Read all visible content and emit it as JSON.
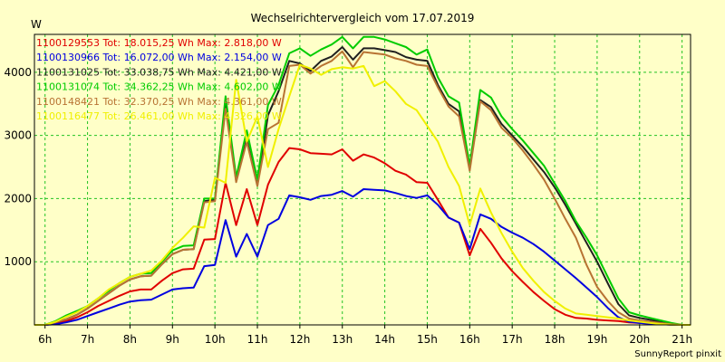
{
  "chart_data": {
    "type": "line",
    "title": "Wechselrichtervergleich vom 17.07.2019",
    "ylabel": "W",
    "xlabel": "",
    "footer": "SunnyReport pinxit",
    "ylim": [
      0,
      4600
    ],
    "xlim": [
      5.75,
      21.2
    ],
    "yticks": [
      1000,
      2000,
      3000,
      4000
    ],
    "xticks": [
      6,
      7,
      8,
      9,
      10,
      11,
      12,
      13,
      14,
      15,
      16,
      17,
      18,
      19,
      20,
      21
    ],
    "xtick_labels": [
      "6h",
      "7h",
      "8h",
      "9h",
      "10h",
      "11h",
      "12h",
      "13h",
      "14h",
      "15h",
      "16h",
      "17h",
      "18h",
      "19h",
      "20h",
      "21h"
    ],
    "grid": true,
    "legend_position": "top-left",
    "x": [
      5.75,
      6.0,
      6.25,
      6.5,
      6.75,
      7.0,
      7.25,
      7.5,
      7.75,
      8.0,
      8.25,
      8.5,
      8.75,
      9.0,
      9.25,
      9.5,
      9.75,
      10.0,
      10.25,
      10.5,
      10.75,
      11.0,
      11.25,
      11.5,
      11.75,
      12.0,
      12.25,
      12.5,
      12.75,
      13.0,
      13.25,
      13.5,
      13.75,
      14.0,
      14.25,
      14.5,
      14.75,
      15.0,
      15.25,
      15.5,
      15.75,
      16.0,
      16.25,
      16.5,
      16.75,
      17.0,
      17.25,
      17.5,
      17.75,
      18.0,
      18.25,
      18.5,
      18.75,
      19.0,
      19.25,
      19.5,
      19.75,
      20.0,
      20.25,
      20.5,
      20.75,
      21.0,
      21.2
    ],
    "series": [
      {
        "name": "1100129553",
        "color": "#e00000",
        "legend": "1100129553 Tot: 18.015,25 Wh Max: 2.818,00 W",
        "values": [
          0,
          0,
          20,
          60,
          120,
          200,
          300,
          380,
          460,
          530,
          560,
          560,
          700,
          820,
          880,
          890,
          1350,
          1360,
          2250,
          1580,
          2150,
          1580,
          2220,
          2580,
          2800,
          2780,
          2720,
          2710,
          2700,
          2780,
          2600,
          2700,
          2650,
          2560,
          2440,
          2380,
          2260,
          2250,
          1980,
          1700,
          1620,
          1100,
          1520,
          1300,
          1050,
          850,
          680,
          520,
          380,
          250,
          160,
          110,
          100,
          80,
          70,
          60,
          40,
          30,
          20,
          10,
          5,
          0,
          0
        ]
      },
      {
        "name": "1100130966",
        "color": "#0000e0",
        "legend": "1100130966 Tot: 16.072,00 Wh Max: 2.154,00 W",
        "values": [
          0,
          0,
          10,
          40,
          80,
          140,
          200,
          260,
          320,
          370,
          390,
          400,
          480,
          560,
          580,
          590,
          930,
          950,
          1660,
          1080,
          1440,
          1080,
          1580,
          1680,
          2050,
          2020,
          1980,
          2040,
          2060,
          2120,
          2030,
          2150,
          2140,
          2130,
          2090,
          2040,
          2010,
          2050,
          1900,
          1700,
          1620,
          1200,
          1750,
          1680,
          1550,
          1460,
          1380,
          1280,
          1160,
          1020,
          880,
          740,
          590,
          440,
          270,
          120,
          50,
          30,
          20,
          10,
          5,
          0,
          0
        ]
      },
      {
        "name": "1100131025",
        "color": "#202020",
        "legend": "1100131025 Tot: 33.038,75 Wh Max: 4.421,00 W",
        "values": [
          0,
          0,
          40,
          90,
          160,
          260,
          380,
          500,
          620,
          720,
          770,
          780,
          960,
          1120,
          1190,
          1200,
          1960,
          1980,
          3550,
          2280,
          2940,
          2210,
          3320,
          3700,
          4180,
          4140,
          4020,
          4180,
          4250,
          4400,
          4200,
          4380,
          4380,
          4350,
          4320,
          4240,
          4200,
          4180,
          3800,
          3500,
          3380,
          2480,
          3560,
          3450,
          3180,
          3000,
          2820,
          2620,
          2420,
          2180,
          1900,
          1600,
          1300,
          1000,
          660,
          330,
          150,
          110,
          80,
          50,
          20,
          0,
          0
        ]
      },
      {
        "name": "1100131074",
        "color": "#00cc00",
        "legend": "1100131074 Tot: 34.362,25 Wh Max: 4.602,00 W",
        "values": [
          0,
          0,
          60,
          150,
          220,
          300,
          420,
          540,
          660,
          760,
          810,
          820,
          1000,
          1180,
          1250,
          1260,
          2000,
          2000,
          3620,
          2340,
          3080,
          2300,
          3480,
          3800,
          4300,
          4380,
          4260,
          4360,
          4440,
          4560,
          4380,
          4560,
          4560,
          4520,
          4460,
          4400,
          4280,
          4360,
          3920,
          3620,
          3520,
          2520,
          3720,
          3600,
          3300,
          3100,
          2920,
          2720,
          2520,
          2240,
          1960,
          1640,
          1380,
          1100,
          760,
          420,
          200,
          150,
          110,
          70,
          30,
          0,
          0
        ]
      },
      {
        "name": "1100148421",
        "color": "#b87333",
        "legend": "1100148421 Tot: 32.370,25 Wh Max: 4.361,00 W",
        "values": [
          0,
          0,
          40,
          90,
          160,
          260,
          380,
          500,
          620,
          720,
          770,
          780,
          960,
          1120,
          1190,
          1200,
          1940,
          1960,
          3420,
          2260,
          2900,
          2200,
          3100,
          3200,
          4100,
          4120,
          3980,
          4100,
          4180,
          4330,
          4080,
          4320,
          4300,
          4280,
          4220,
          4180,
          4120,
          4100,
          3760,
          3460,
          3300,
          2440,
          3540,
          3400,
          3120,
          2960,
          2760,
          2540,
          2300,
          2000,
          1680,
          1380,
          950,
          600,
          380,
          200,
          100,
          70,
          50,
          30,
          10,
          0,
          0
        ]
      },
      {
        "name": "1100116477",
        "color": "#f0f000",
        "legend": "1100116477 Tot: 26.461,00 Wh Max: 4.326,00 W",
        "values": [
          0,
          0,
          50,
          130,
          200,
          300,
          420,
          560,
          660,
          760,
          810,
          860,
          1020,
          1220,
          1380,
          1560,
          1540,
          2330,
          2250,
          3880,
          2900,
          3300,
          2500,
          3100,
          3620,
          4120,
          4060,
          3960,
          4050,
          4080,
          4060,
          4100,
          3780,
          3860,
          3700,
          3500,
          3400,
          3150,
          2900,
          2500,
          2200,
          1580,
          2160,
          1780,
          1450,
          1160,
          900,
          700,
          520,
          380,
          260,
          180,
          160,
          140,
          120,
          100,
          70,
          50,
          30,
          15,
          5,
          0,
          0
        ]
      }
    ]
  }
}
